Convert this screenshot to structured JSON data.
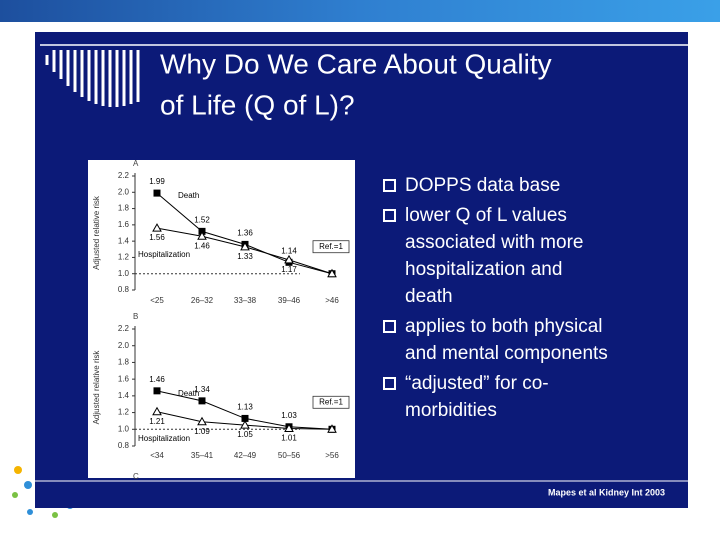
{
  "header": {
    "title_lines": [
      "Why Do We Care About Quality",
      "of Life (Q of L)?"
    ]
  },
  "bullets": [
    {
      "lines": [
        "DOPPS data base"
      ]
    },
    {
      "lines": [
        "lower Q of L values",
        "associated with more",
        "hospitalization and",
        "death"
      ]
    },
    {
      "lines": [
        "applies to both physical",
        "and mental components"
      ]
    },
    {
      "lines": [
        "“adjusted” for co-",
        "morbidities"
      ]
    }
  ],
  "citation": "Mapes et al Kidney Int 2003",
  "next_panel_label": "C",
  "chart_data": [
    {
      "type": "line",
      "panel": "A",
      "ylabel": "Adjusted relative risk",
      "categories": [
        "<25",
        "26–32",
        "33–38",
        "39–46",
        ">46"
      ],
      "ylim": [
        0.8,
        2.2
      ],
      "yticks": [
        0.8,
        {
          "value": 1,
          "label": "1.0"
        },
        1.2,
        1.4,
        1.6,
        1.8,
        {
          "value": 2,
          "label": "2.0"
        },
        2.2
      ],
      "reference": {
        "value": 1,
        "label": "Ref.=1"
      },
      "series": [
        {
          "name": "Death",
          "color": "#000000",
          "marker": "square",
          "values": [
            1.99,
            1.52,
            1.36,
            1.14,
            1
          ],
          "value_labels": [
            "1.99",
            "1.52",
            "1.36",
            "1.14",
            null
          ]
        },
        {
          "name": "Hospitalization",
          "color": "#000000",
          "marker": "triangle",
          "values": [
            1.56,
            1.46,
            1.33,
            1.17,
            1
          ],
          "value_labels": [
            "1.56",
            "1.46",
            "1.33",
            "1.17",
            null
          ]
        }
      ]
    },
    {
      "type": "line",
      "panel": "B",
      "ylabel": "Adjusted relative risk",
      "categories": [
        "<34",
        "35–41",
        "42–49",
        "50–56",
        ">56"
      ],
      "ylim": [
        0.8,
        2.2
      ],
      "yticks": [
        0.8,
        {
          "value": 1,
          "label": "1.0"
        },
        1.2,
        1.4,
        1.6,
        1.8,
        {
          "value": 2,
          "label": "2.0"
        },
        2.2
      ],
      "reference": {
        "value": 1,
        "label": "Ref.=1"
      },
      "series": [
        {
          "name": "Death",
          "color": "#000000",
          "marker": "square",
          "values": [
            1.46,
            1.34,
            1.13,
            1.03,
            1
          ],
          "value_labels": [
            "1.46",
            "1.34",
            "1.13",
            "1.03",
            null
          ]
        },
        {
          "name": "Hospitalization",
          "color": "#000000",
          "marker": "triangle",
          "values": [
            1.21,
            1.09,
            1.05,
            1.01,
            1
          ],
          "value_labels": [
            "1.21",
            "1.09",
            "1.05",
            "1.01",
            null
          ]
        }
      ]
    }
  ]
}
